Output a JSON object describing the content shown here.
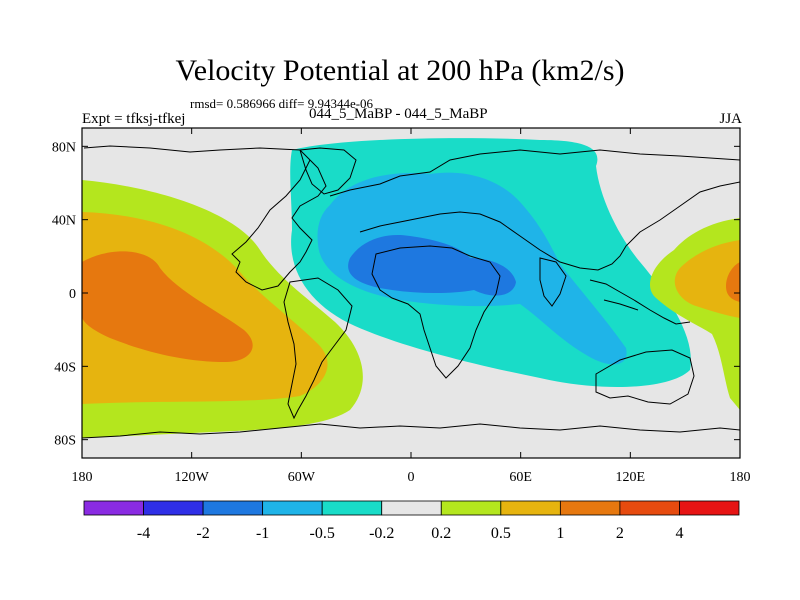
{
  "chart_data": {
    "type": "heatmap",
    "title": "Velocity Potential at 200 hPa (km2/s)",
    "stats_text": "rmsd= 0.586966 diff= 9.94344e-06",
    "left_label": "Expt = tfksj-tfkej",
    "center_label": "044_5_MaBP - 044_5_MaBP",
    "right_label": "JJA",
    "xlim": [
      -180,
      180
    ],
    "ylim": [
      -90,
      90
    ],
    "x_ticks": [
      {
        "value": -180,
        "label": "180"
      },
      {
        "value": -120,
        "label": "120W"
      },
      {
        "value": -60,
        "label": "60W"
      },
      {
        "value": 0,
        "label": "0"
      },
      {
        "value": 60,
        "label": "60E"
      },
      {
        "value": 120,
        "label": "120E"
      },
      {
        "value": 180,
        "label": "180"
      }
    ],
    "y_ticks": [
      {
        "value": 80,
        "label": "80N"
      },
      {
        "value": 40,
        "label": "40N"
      },
      {
        "value": 0,
        "label": "0"
      },
      {
        "value": -40,
        "label": "40S"
      },
      {
        "value": -80,
        "label": "80S"
      }
    ],
    "colorbar": {
      "levels": [
        "-4",
        "-2",
        "-1",
        "-0.5",
        "-0.2",
        "0.2",
        "0.5",
        "1",
        "2",
        "4"
      ],
      "colors": [
        "#8a2be2",
        "#2f2fe6",
        "#1e78e0",
        "#1fb4e8",
        "#19dcc8",
        "#e6e6e6",
        "#b4e61e",
        "#e6b40f",
        "#e6780f",
        "#e64b0f",
        "#e61414"
      ]
    },
    "regions": [
      {
        "name": "pacific-positive-outer",
        "level": "0.2 to 0.5",
        "color": "#b4e61e"
      },
      {
        "name": "pacific-positive-mid",
        "level": "0.5 to 1",
        "color": "#e6b40f"
      },
      {
        "name": "pacific-positive-core",
        "level": "1 to 2",
        "color": "#e6780f"
      },
      {
        "name": "africa-asia-negative-outer",
        "level": "-0.5 to -0.2",
        "color": "#19dcc8"
      },
      {
        "name": "africa-asia-negative-mid",
        "level": "-1 to -0.5",
        "color": "#1fb4e8"
      },
      {
        "name": "africa-negative-core",
        "level": "-2 to -1",
        "color": "#1e78e0"
      },
      {
        "name": "date-line-positive-outer",
        "level": "0.2 to 0.5",
        "color": "#b4e61e"
      },
      {
        "name": "date-line-positive-mid",
        "level": "0.5 to 1",
        "color": "#e6b40f"
      },
      {
        "name": "date-line-positive-core",
        "level": "1 to 2",
        "color": "#e6780f"
      }
    ]
  }
}
